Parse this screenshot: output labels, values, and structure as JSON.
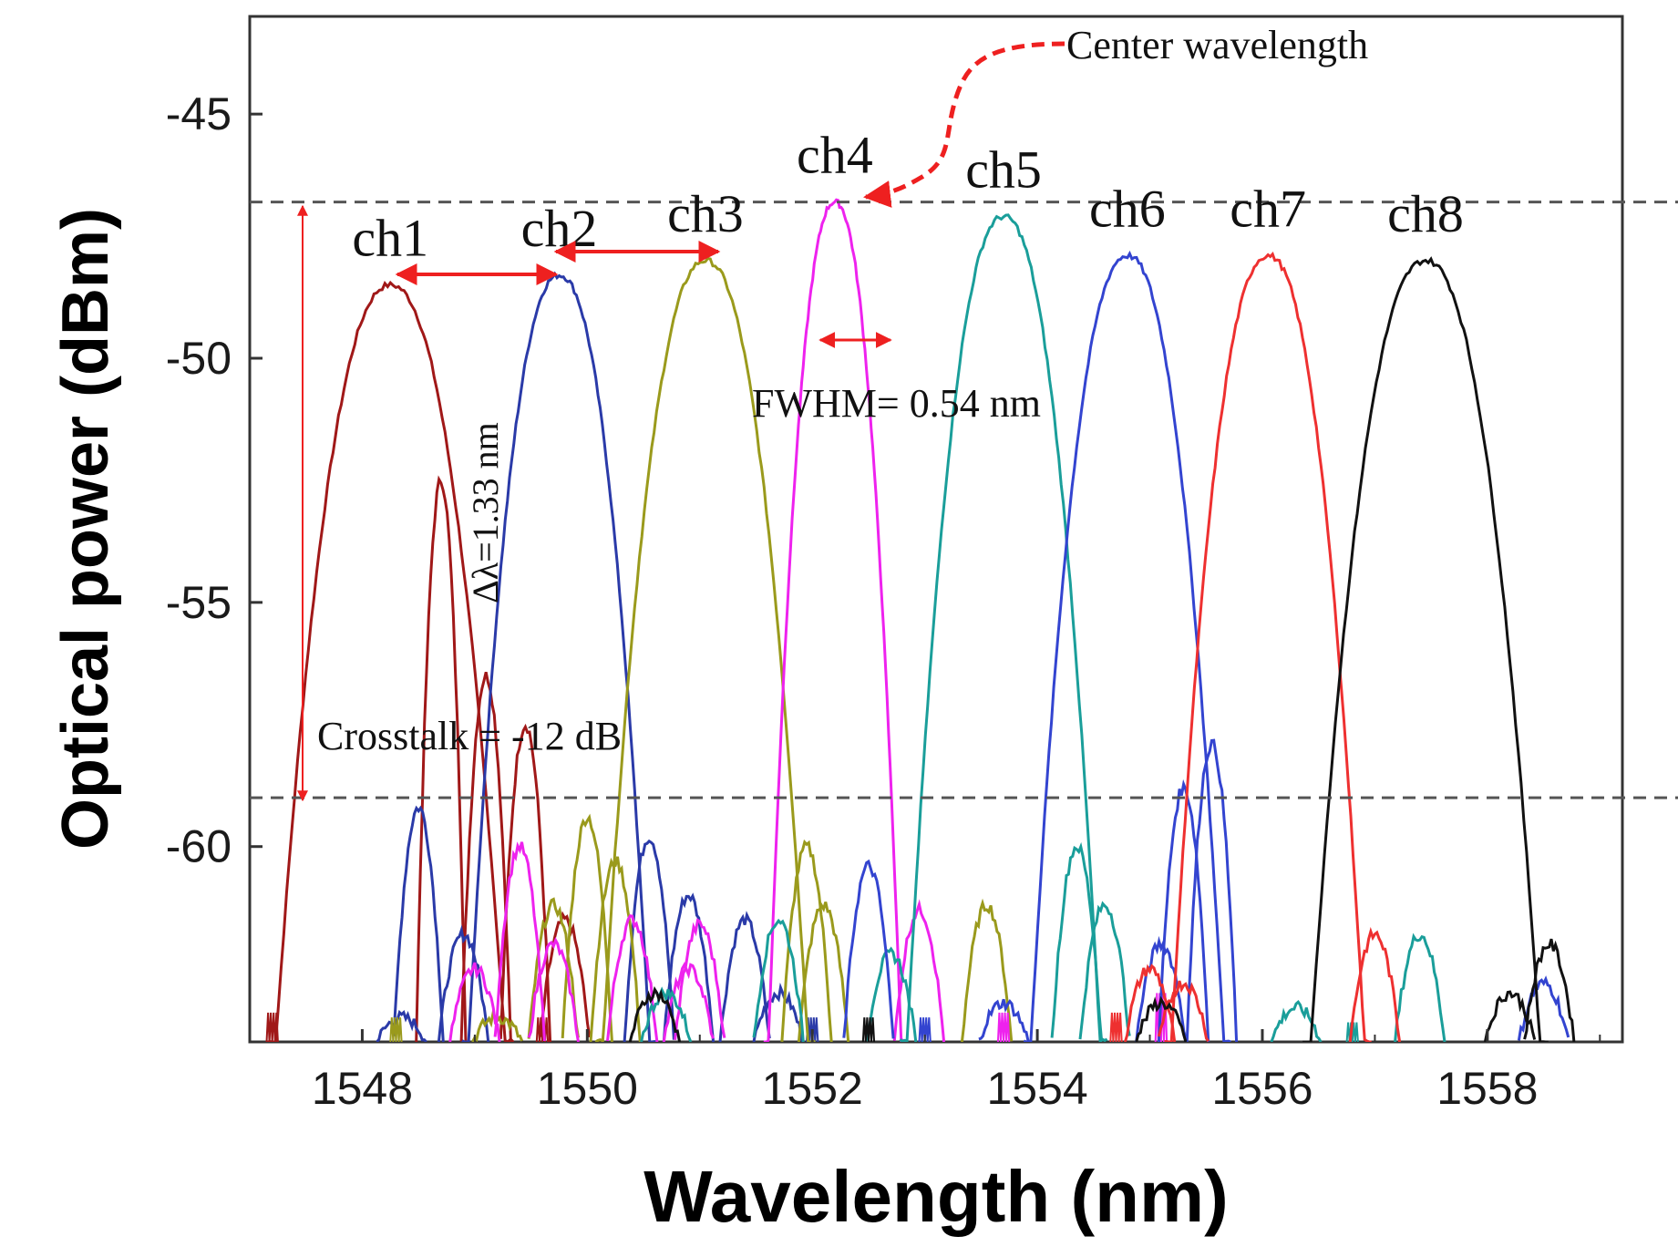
{
  "chart_data": {
    "type": "line",
    "title": "",
    "xlabel": "Wavelength (nm)",
    "ylabel": "Optical power (dBm)",
    "xlim": [
      1547.0,
      1559.2
    ],
    "ylim": [
      -64.0,
      -43.0
    ],
    "xticks": [
      1548,
      1550,
      1552,
      1554,
      1556,
      1558
    ],
    "yticks": [
      -45,
      -50,
      -55,
      -60
    ],
    "floor": -64.0,
    "series": [
      {
        "name": "ch1",
        "color": "#a01818",
        "center": 1548.25,
        "peak": -48.5,
        "halfwidth": 0.95,
        "extra": [
          [
            1548.7,
            -52.5
          ],
          [
            1549.1,
            -56.5
          ],
          [
            1549.45,
            -57.5
          ],
          [
            1549.8,
            -61.5
          ]
        ],
        "noise": [
          [
            1547.2,
            -63.4
          ],
          [
            1549.6,
            -63.5
          ]
        ]
      },
      {
        "name": "ch2",
        "color": "#2a3aa8",
        "center": 1549.75,
        "peak": -48.3,
        "halfwidth": 0.75,
        "extra": [
          [
            1548.35,
            -63.5
          ],
          [
            1548.5,
            -59.2
          ],
          [
            1548.9,
            -61.8
          ],
          [
            1550.55,
            -59.8
          ],
          [
            1550.9,
            -61.0
          ],
          [
            1551.4,
            -61.5
          ],
          [
            1551.7,
            -63.0
          ]
        ],
        "noise": [
          [
            1552.0,
            -63.5
          ]
        ]
      },
      {
        "name": "ch3",
        "color": "#9a9a1c",
        "center": 1551.05,
        "peak": -48.0,
        "halfwidth": 0.85,
        "extra": [
          [
            1549.2,
            -63.5
          ],
          [
            1549.7,
            -61.2
          ],
          [
            1550.0,
            -59.4
          ],
          [
            1550.25,
            -60.3
          ],
          [
            1551.95,
            -60.0
          ],
          [
            1552.1,
            -61.2
          ],
          [
            1553.55,
            -61.2
          ]
        ],
        "noise": [
          [
            1548.3,
            -63.5
          ]
        ]
      },
      {
        "name": "ch4",
        "color": "#ee22ee",
        "center": 1552.2,
        "peak": -46.8,
        "halfwidth": 0.55,
        "extra": [
          [
            1549.0,
            -62.5
          ],
          [
            1549.4,
            -60.0
          ],
          [
            1549.7,
            -62.0
          ],
          [
            1550.4,
            -61.5
          ],
          [
            1550.9,
            -62.5
          ],
          [
            1551.0,
            -61.6
          ],
          [
            1552.95,
            -61.3
          ]
        ],
        "noise": [
          [
            1553.7,
            -63.4
          ],
          [
            1555.1,
            -63.0
          ]
        ]
      },
      {
        "name": "ch5",
        "color": "#1a9e9a",
        "center": 1553.7,
        "peak": -47.1,
        "halfwidth": 0.8,
        "extra": [
          [
            1550.7,
            -63.0
          ],
          [
            1551.7,
            -61.5
          ],
          [
            1552.7,
            -62.2
          ],
          [
            1554.35,
            -60.0
          ],
          [
            1554.6,
            -61.2
          ],
          [
            1557.4,
            -61.8
          ],
          [
            1556.3,
            -63.3
          ]
        ],
        "noise": [
          [
            1556.8,
            -63.6
          ]
        ]
      },
      {
        "name": "ch6",
        "color": "#3344d0",
        "center": 1554.8,
        "peak": -47.9,
        "halfwidth": 0.8,
        "extra": [
          [
            1555.3,
            -58.8
          ],
          [
            1555.55,
            -57.9
          ],
          [
            1552.5,
            -60.4
          ],
          [
            1553.7,
            -63.2
          ],
          [
            1555.1,
            -62.0
          ],
          [
            1558.5,
            -62.8
          ]
        ],
        "noise": [
          [
            1553.0,
            -63.5
          ]
        ]
      },
      {
        "name": "ch7",
        "color": "#ee3030",
        "center": 1556.05,
        "peak": -47.9,
        "halfwidth": 0.8,
        "extra": [
          [
            1555.0,
            -62.5
          ],
          [
            1555.3,
            -62.8
          ],
          [
            1557.0,
            -61.8
          ]
        ],
        "noise": [
          [
            1554.7,
            -63.4
          ]
        ]
      },
      {
        "name": "ch8",
        "color": "#111111",
        "center": 1557.45,
        "peak": -48.0,
        "halfwidth": 0.95,
        "extra": [
          [
            1558.55,
            -62.0
          ],
          [
            1558.2,
            -63.0
          ],
          [
            1550.6,
            -63.0
          ],
          [
            1555.1,
            -63.2
          ]
        ],
        "noise": [
          [
            1552.5,
            -63.5
          ]
        ]
      }
    ],
    "reference_lines": [
      {
        "name": "max-level",
        "y": -46.8,
        "style": "dashed",
        "color": "#555555"
      },
      {
        "name": "crosstalk-level",
        "y": -59.0,
        "style": "dashed",
        "color": "#555555"
      }
    ],
    "annotations": {
      "center_wavelength": "Center wavelength",
      "fwhm": "FWHM= 0.54 nm",
      "delta_lambda": "Δλ=1.33 nm",
      "crosstalk": "Crosstalk = -12 dB"
    }
  }
}
